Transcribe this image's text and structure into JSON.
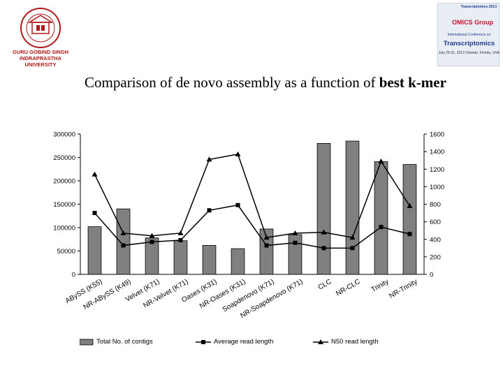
{
  "left_logo": {
    "text": "GURU GOBIND SINGH INDRAPRASTHA UNIVERSITY"
  },
  "badge": {
    "top": "Transcriptomics-2013",
    "omics": "OMICS Group",
    "conference": "International Conference on",
    "main": "Transcriptomics",
    "date": "July 29-31, 2013 Orlando, Florida, USA"
  },
  "title_plain": "Comparison of de novo assembly as a function of ",
  "title_bold": "best k-mer",
  "colors": {
    "bar": "#808080",
    "line": "#000000"
  },
  "chart_data": {
    "type": "bar",
    "title": "Comparison of de novo assembly as a function of best k-mer",
    "categories": [
      "ABySS (K55)",
      "NR-ABySS (K49)",
      "Velvet (K71)",
      "NR-Velvet (K71)",
      "Oases (K31)",
      "NR-Oases (K31)",
      "Soapdenovo (K71)",
      "NR-Soapdenovo (K71)",
      "CLC",
      "NR-CLC",
      "Trinity",
      "NR-Trinity"
    ],
    "y_left": {
      "ylim": [
        0,
        300000
      ],
      "ticks": [
        "0",
        "50000",
        "100000",
        "150000",
        "200000",
        "250000",
        "300000"
      ]
    },
    "y_right": {
      "ylim": [
        0,
        1600
      ],
      "ticks": [
        "0",
        "200",
        "400",
        "600",
        "800",
        "1000",
        "1200",
        "1400",
        "1600"
      ]
    },
    "series": [
      {
        "name": "Total No. of contigs",
        "kind": "bar",
        "axis": "left",
        "values": [
          102000,
          140000,
          78000,
          72000,
          62000,
          55000,
          97000,
          85000,
          280000,
          285000,
          241000,
          235000
        ]
      },
      {
        "name": "Average read length",
        "kind": "line",
        "marker": "square",
        "axis": "right",
        "values": [
          700,
          330,
          370,
          390,
          730,
          790,
          330,
          360,
          300,
          300,
          540,
          460
        ]
      },
      {
        "name": "N50 read length",
        "kind": "line",
        "marker": "triangle",
        "axis": "right",
        "values": [
          1140,
          470,
          440,
          470,
          1310,
          1370,
          420,
          470,
          480,
          420,
          1290,
          780
        ]
      }
    ],
    "legend_position": "bottom",
    "grid": false
  }
}
